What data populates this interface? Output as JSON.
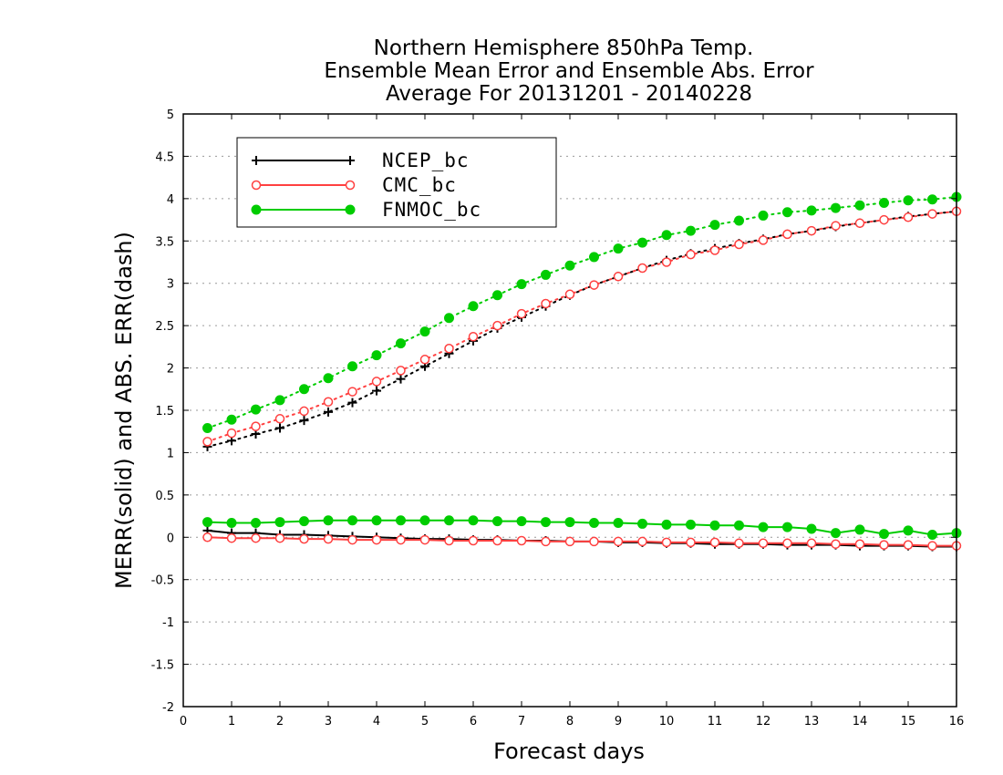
{
  "chart_data": {
    "type": "line",
    "title_lines": [
      "Northern Hemisphere 850hPa Temp.",
      "Ensemble Mean Error and Ensemble Abs. Error",
      "Average For 20131201 - 20140228"
    ],
    "xlabel": "Forecast days",
    "ylabel": "MERR(solid) and ABS. ERR(dash)",
    "xlim": [
      0,
      16
    ],
    "ylim": [
      -2,
      5
    ],
    "x_ticks": [
      "0",
      "1",
      "2",
      "3",
      "4",
      "5",
      "6",
      "7",
      "8",
      "9",
      "10",
      "11",
      "12",
      "13",
      "14",
      "15",
      "16"
    ],
    "y_ticks": [
      "-2",
      "-1.5",
      "-1",
      "-0.5",
      "0",
      "0.5",
      "1",
      "1.5",
      "2",
      "2.5",
      "3",
      "3.5",
      "4",
      "4.5",
      "5"
    ],
    "grid": true,
    "legend_position": "top-left",
    "x": [
      0.5,
      1,
      1.5,
      2,
      2.5,
      3,
      3.5,
      4,
      4.5,
      5,
      5.5,
      6,
      6.5,
      7,
      7.5,
      8,
      8.5,
      9,
      9.5,
      10,
      10.5,
      11,
      11.5,
      12,
      12.5,
      13,
      13.5,
      14,
      14.5,
      15,
      15.5,
      16
    ],
    "series": [
      {
        "name": "NCEP_bc",
        "color": "#000000",
        "marker": "plus",
        "merr": [
          0.08,
          0.05,
          0.05,
          0.03,
          0.03,
          0.02,
          0.01,
          0.0,
          -0.01,
          -0.02,
          -0.02,
          -0.03,
          -0.03,
          -0.04,
          -0.04,
          -0.05,
          -0.05,
          -0.06,
          -0.06,
          -0.07,
          -0.07,
          -0.08,
          -0.08,
          -0.08,
          -0.09,
          -0.09,
          -0.09,
          -0.1,
          -0.1,
          -0.1,
          -0.11,
          -0.11
        ],
        "abs_err": [
          1.07,
          1.14,
          1.22,
          1.29,
          1.38,
          1.48,
          1.59,
          1.73,
          1.87,
          2.02,
          2.17,
          2.32,
          2.47,
          2.6,
          2.73,
          2.86,
          2.98,
          3.08,
          3.18,
          3.27,
          3.35,
          3.41,
          3.47,
          3.52,
          3.58,
          3.62,
          3.67,
          3.71,
          3.75,
          3.79,
          3.82,
          3.85
        ]
      },
      {
        "name": "CMC_bc",
        "color": "#ff4040",
        "marker": "open-circle",
        "merr": [
          0.0,
          -0.01,
          -0.01,
          -0.01,
          -0.02,
          -0.02,
          -0.03,
          -0.03,
          -0.03,
          -0.03,
          -0.04,
          -0.04,
          -0.04,
          -0.04,
          -0.05,
          -0.05,
          -0.05,
          -0.05,
          -0.05,
          -0.06,
          -0.06,
          -0.06,
          -0.07,
          -0.07,
          -0.07,
          -0.07,
          -0.08,
          -0.08,
          -0.09,
          -0.09,
          -0.1,
          -0.1
        ],
        "abs_err": [
          1.13,
          1.23,
          1.31,
          1.4,
          1.49,
          1.6,
          1.72,
          1.84,
          1.97,
          2.1,
          2.23,
          2.37,
          2.5,
          2.64,
          2.76,
          2.87,
          2.98,
          3.08,
          3.18,
          3.25,
          3.34,
          3.39,
          3.46,
          3.51,
          3.58,
          3.62,
          3.68,
          3.71,
          3.75,
          3.78,
          3.82,
          3.85
        ]
      },
      {
        "name": "FNMOC_bc",
        "color": "#00cc00",
        "marker": "filled-circle",
        "merr": [
          0.18,
          0.17,
          0.17,
          0.18,
          0.19,
          0.2,
          0.2,
          0.2,
          0.2,
          0.2,
          0.2,
          0.2,
          0.19,
          0.19,
          0.18,
          0.18,
          0.17,
          0.17,
          0.16,
          0.15,
          0.15,
          0.14,
          0.14,
          0.12,
          0.12,
          0.1,
          0.05,
          0.09,
          0.04,
          0.08,
          0.03,
          0.05
        ],
        "abs_err": [
          1.29,
          1.39,
          1.51,
          1.62,
          1.75,
          1.88,
          2.02,
          2.15,
          2.29,
          2.43,
          2.59,
          2.73,
          2.86,
          2.99,
          3.1,
          3.21,
          3.31,
          3.41,
          3.48,
          3.57,
          3.62,
          3.69,
          3.74,
          3.8,
          3.84,
          3.86,
          3.89,
          3.92,
          3.95,
          3.98,
          3.99,
          4.02
        ]
      }
    ]
  }
}
